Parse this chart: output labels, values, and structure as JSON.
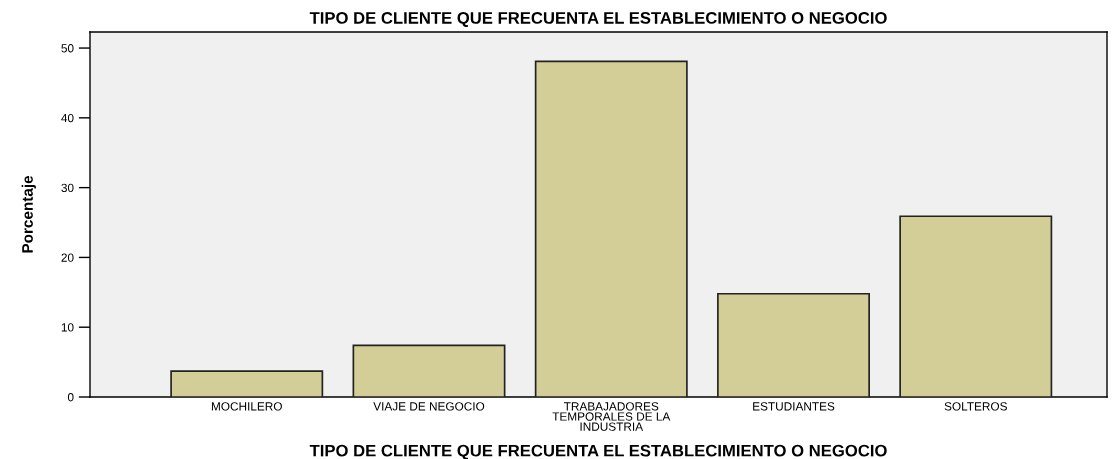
{
  "chart_data": {
    "type": "bar",
    "title": "TIPO DE CLIENTE QUE FRECUENTA EL ESTABLECIMIENTO O NEGOCIO",
    "xlabel": "TIPO DE CLIENTE QUE FRECUENTA EL ESTABLECIMIENTO O NEGOCIO",
    "ylabel": "Porcentaje",
    "categories": [
      "MOCHILERO",
      "VIAJE DE NEGOCIO",
      "TRABAJADORES TEMPORALES DE LA INDUSTRIA",
      "ESTUDIANTES",
      "SOLTEROS"
    ],
    "values": [
      3.7,
      7.4,
      48.1,
      14.8,
      25.9
    ],
    "color": "#d3ce97",
    "ylim": [
      0,
      52.3
    ],
    "yticks": [
      0,
      10,
      20,
      30,
      40,
      50
    ],
    "grid": false,
    "legend": false
  }
}
